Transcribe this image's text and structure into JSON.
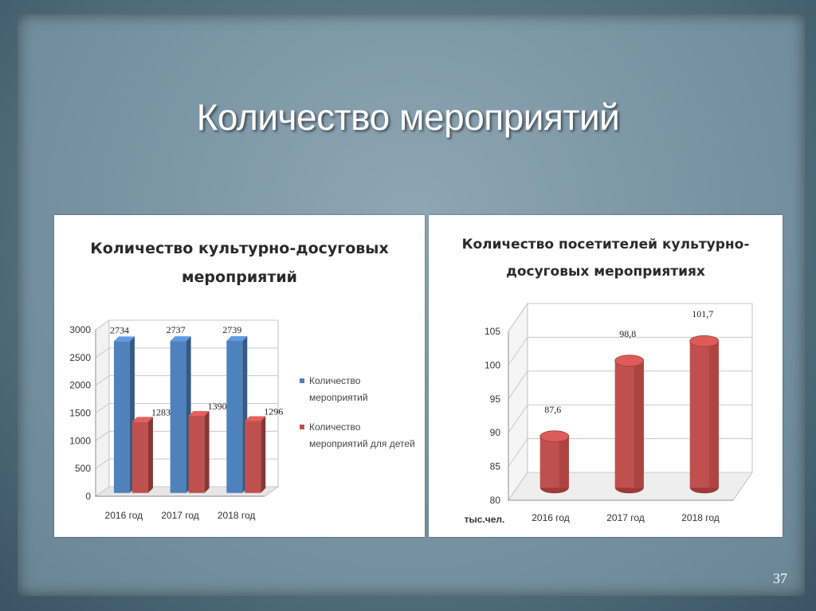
{
  "slide": {
    "title": "Количество мероприятий",
    "page_number": "37"
  },
  "colors": {
    "blue": "#4f81bd",
    "red": "#c0504d",
    "red_dark": "#9e3a37"
  },
  "chart_data": [
    {
      "type": "bar",
      "title": "Количество культурно-досуговых мероприятий",
      "title_lines": [
        "Количество культурно-досуговых",
        "мероприятий"
      ],
      "categories": [
        "2016 год",
        "2017 год",
        "2018 год"
      ],
      "series": [
        {
          "name": "Количество мероприятий",
          "values": [
            2734,
            2737,
            2739
          ]
        },
        {
          "name": "Количество мероприятий для детей",
          "values": [
            1283,
            1390,
            1296
          ]
        }
      ],
      "legend_lines": [
        [
          "Количество",
          "мероприятий"
        ],
        [
          "Количество",
          "мероприятий для детей"
        ]
      ],
      "yticks": [
        "0",
        "500",
        "1000",
        "1500",
        "2000",
        "2500",
        "3000"
      ],
      "ylim": [
        0,
        3000
      ],
      "legend": "right",
      "grid": true,
      "style": "3d-cylinder"
    },
    {
      "type": "bar",
      "title": "Количество посетителей культурно-досуговых мероприятиях",
      "title_lines": [
        "Количество посетителей культурно-",
        "досуговых мероприятиях"
      ],
      "categories": [
        "2016 год",
        "2017 год",
        "2018 год"
      ],
      "values": [
        87.6,
        98.8,
        101.7
      ],
      "value_labels": [
        "87,6",
        "98,8",
        "101,7"
      ],
      "yticks": [
        "80",
        "85",
        "90",
        "95",
        "100",
        "105"
      ],
      "ylim": [
        80,
        105
      ],
      "unit_label": "тыс.чел.",
      "grid": true,
      "style": "3d-cylinder"
    }
  ]
}
